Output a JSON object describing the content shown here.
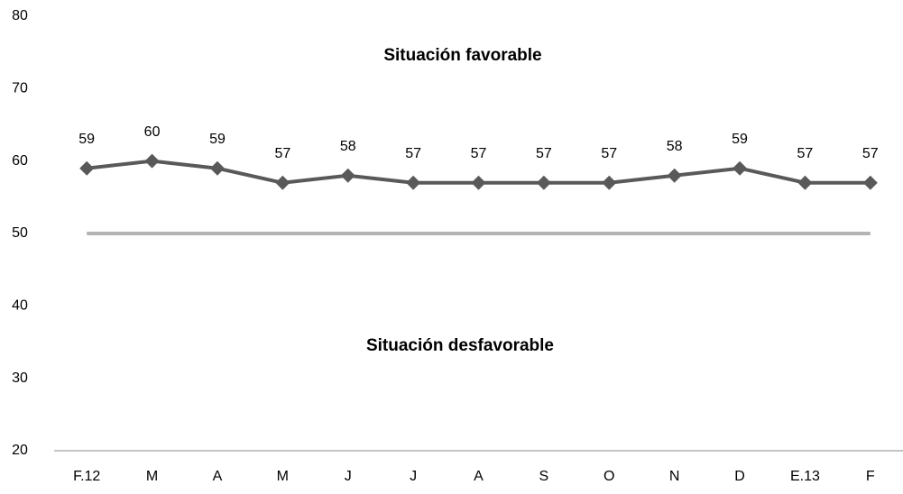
{
  "chart_data": {
    "type": "line",
    "categories": [
      "F.12",
      "M",
      "A",
      "M",
      "J",
      "J",
      "A",
      "S",
      "O",
      "N",
      "D",
      "E.13",
      "F"
    ],
    "values": [
      59,
      60,
      59,
      57,
      58,
      57,
      57,
      57,
      57,
      58,
      59,
      57,
      57
    ],
    "color": "#595959",
    "reference": {
      "value": 50,
      "color": "#b3b3b3"
    },
    "annotations": [
      "Situación favorable",
      "Situación desfavorable"
    ],
    "ylim": [
      20,
      80
    ],
    "yticks": [
      20,
      30,
      40,
      50,
      60,
      70,
      80
    ],
    "grid": false
  }
}
